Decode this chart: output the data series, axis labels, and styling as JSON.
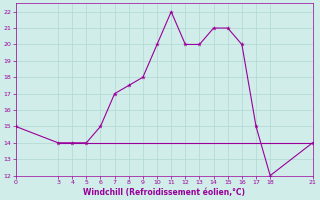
{
  "line1_x": [
    0,
    3,
    4,
    5,
    6,
    7,
    8,
    9,
    10,
    11,
    12,
    13,
    14,
    15,
    16,
    17,
    18,
    21
  ],
  "line1_y": [
    15,
    14,
    14,
    14,
    15,
    17,
    17.5,
    18,
    20,
    22,
    20,
    20,
    21,
    21,
    20,
    15,
    12,
    14
  ],
  "line2_x": [
    3,
    4,
    5,
    6,
    7,
    8,
    9,
    10,
    11,
    12,
    13,
    14,
    15,
    16,
    17,
    18,
    21
  ],
  "line2_y": [
    14,
    14,
    14,
    14,
    14,
    14,
    14,
    14,
    14,
    14,
    14,
    14,
    14,
    14,
    14,
    14,
    14
  ],
  "line_color": "#990099",
  "bg_color": "#d0edea",
  "grid_color": "#b0d8d4",
  "xlabel": "Windchill (Refroidissement éolien,°C)",
  "xlabel_color": "#990099",
  "tick_color": "#990099",
  "xlim": [
    0,
    21
  ],
  "ylim": [
    12,
    22.5
  ],
  "xticks": [
    0,
    3,
    4,
    5,
    6,
    7,
    8,
    9,
    10,
    11,
    12,
    13,
    14,
    15,
    16,
    17,
    18,
    21
  ],
  "yticks": [
    12,
    13,
    14,
    15,
    16,
    17,
    18,
    19,
    20,
    21,
    22
  ]
}
